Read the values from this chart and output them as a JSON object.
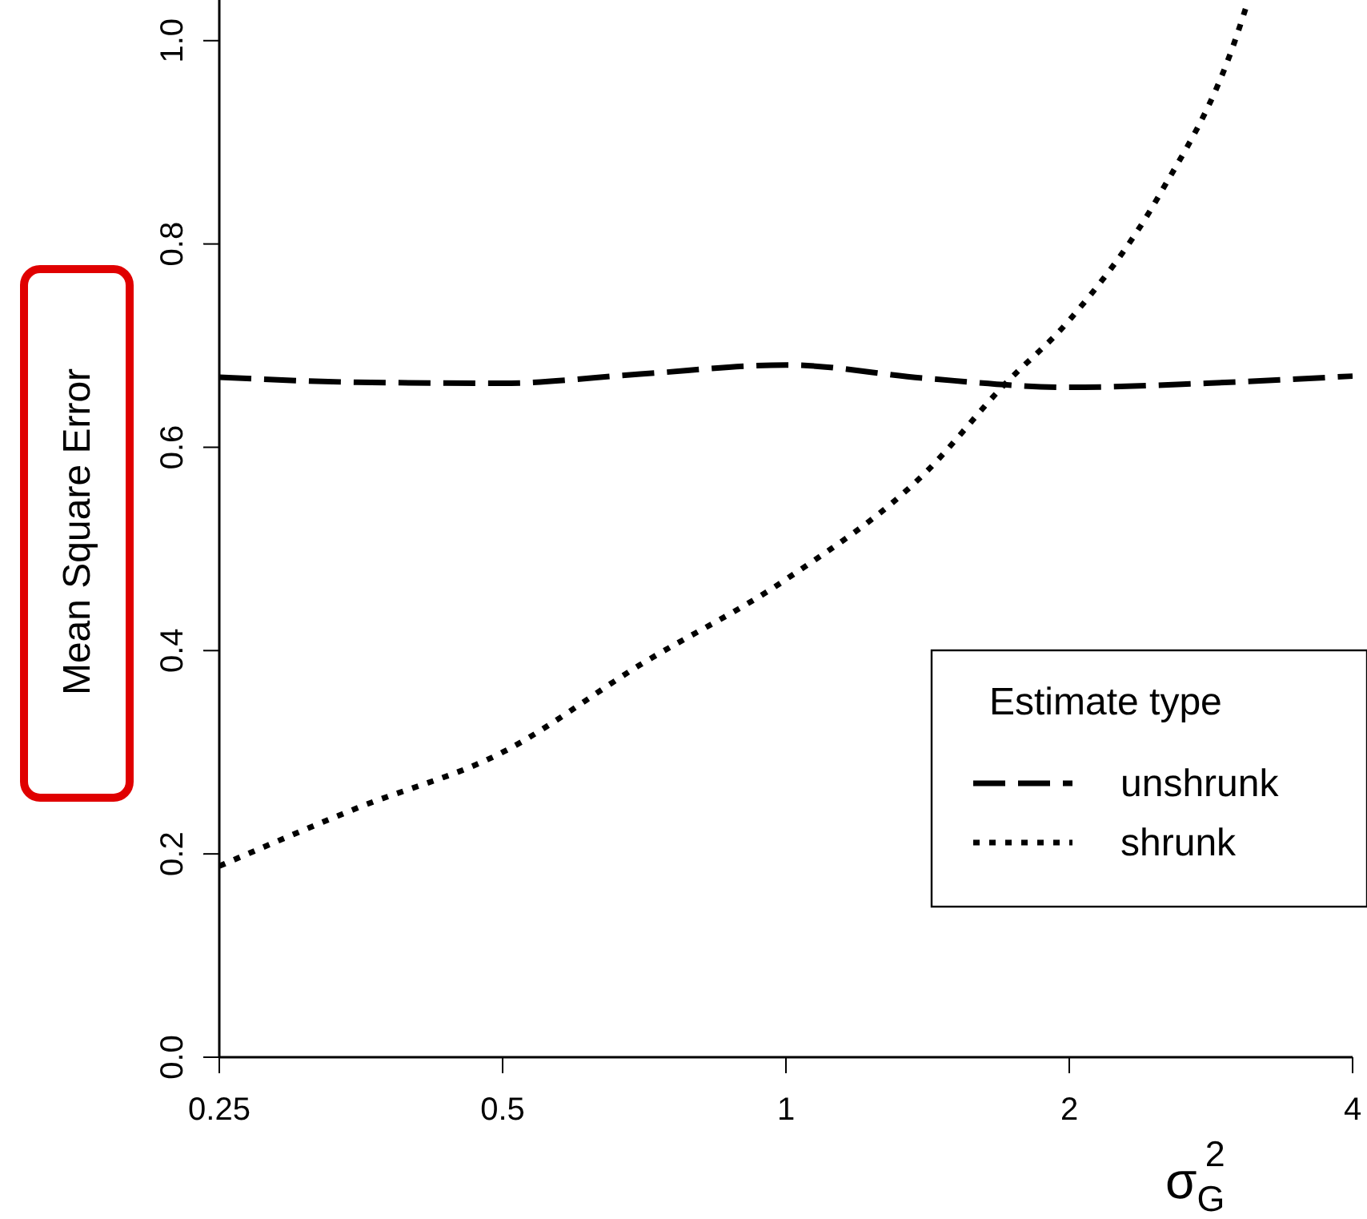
{
  "chart_data": {
    "type": "line",
    "xlabel": "σ$_{G}$$^{2}$",
    "ylabel": "Mean Square Error",
    "legend_title": "Estimate type",
    "log": "x",
    "xlim": [
      0.25,
      4
    ],
    "ylim": [
      0,
      1.04
    ],
    "xticks": [
      0.25,
      0.5,
      1,
      2,
      4
    ],
    "yticks": [
      {
        "value": 0,
        "label": "0.0"
      },
      {
        "value": 0.2,
        "label": "0.2"
      },
      {
        "value": 0.4,
        "label": "0.4"
      },
      {
        "value": 0.6,
        "label": "0.6"
      },
      {
        "value": 0.8,
        "label": "0.8"
      },
      {
        "value": 1,
        "label": "1.0"
      }
    ],
    "grid": false,
    "legend": "bottom right",
    "marker": "none",
    "series": [
      {
        "name": "unshrunk",
        "color": "#000000",
        "line_style": "dashed",
        "x": [
          0.25,
          0.35,
          0.5,
          0.7,
          1,
          1.4,
          2,
          2.8,
          4
        ],
        "values": [
          0.669,
          0.664,
          0.663,
          0.672,
          0.681,
          0.668,
          0.659,
          0.663,
          0.67
        ]
      },
      {
        "name": "shrunk",
        "color": "#000000",
        "line_style": "dotted",
        "x": [
          0.25,
          0.35,
          0.5,
          0.7,
          1,
          1.41,
          1.7,
          2,
          2.5,
          3,
          3.1
        ],
        "values": [
          0.188,
          0.245,
          0.3,
          0.386,
          0.47,
          0.576,
          0.66,
          0.725,
          0.85,
          1.0,
          1.04
        ]
      }
    ]
  }
}
